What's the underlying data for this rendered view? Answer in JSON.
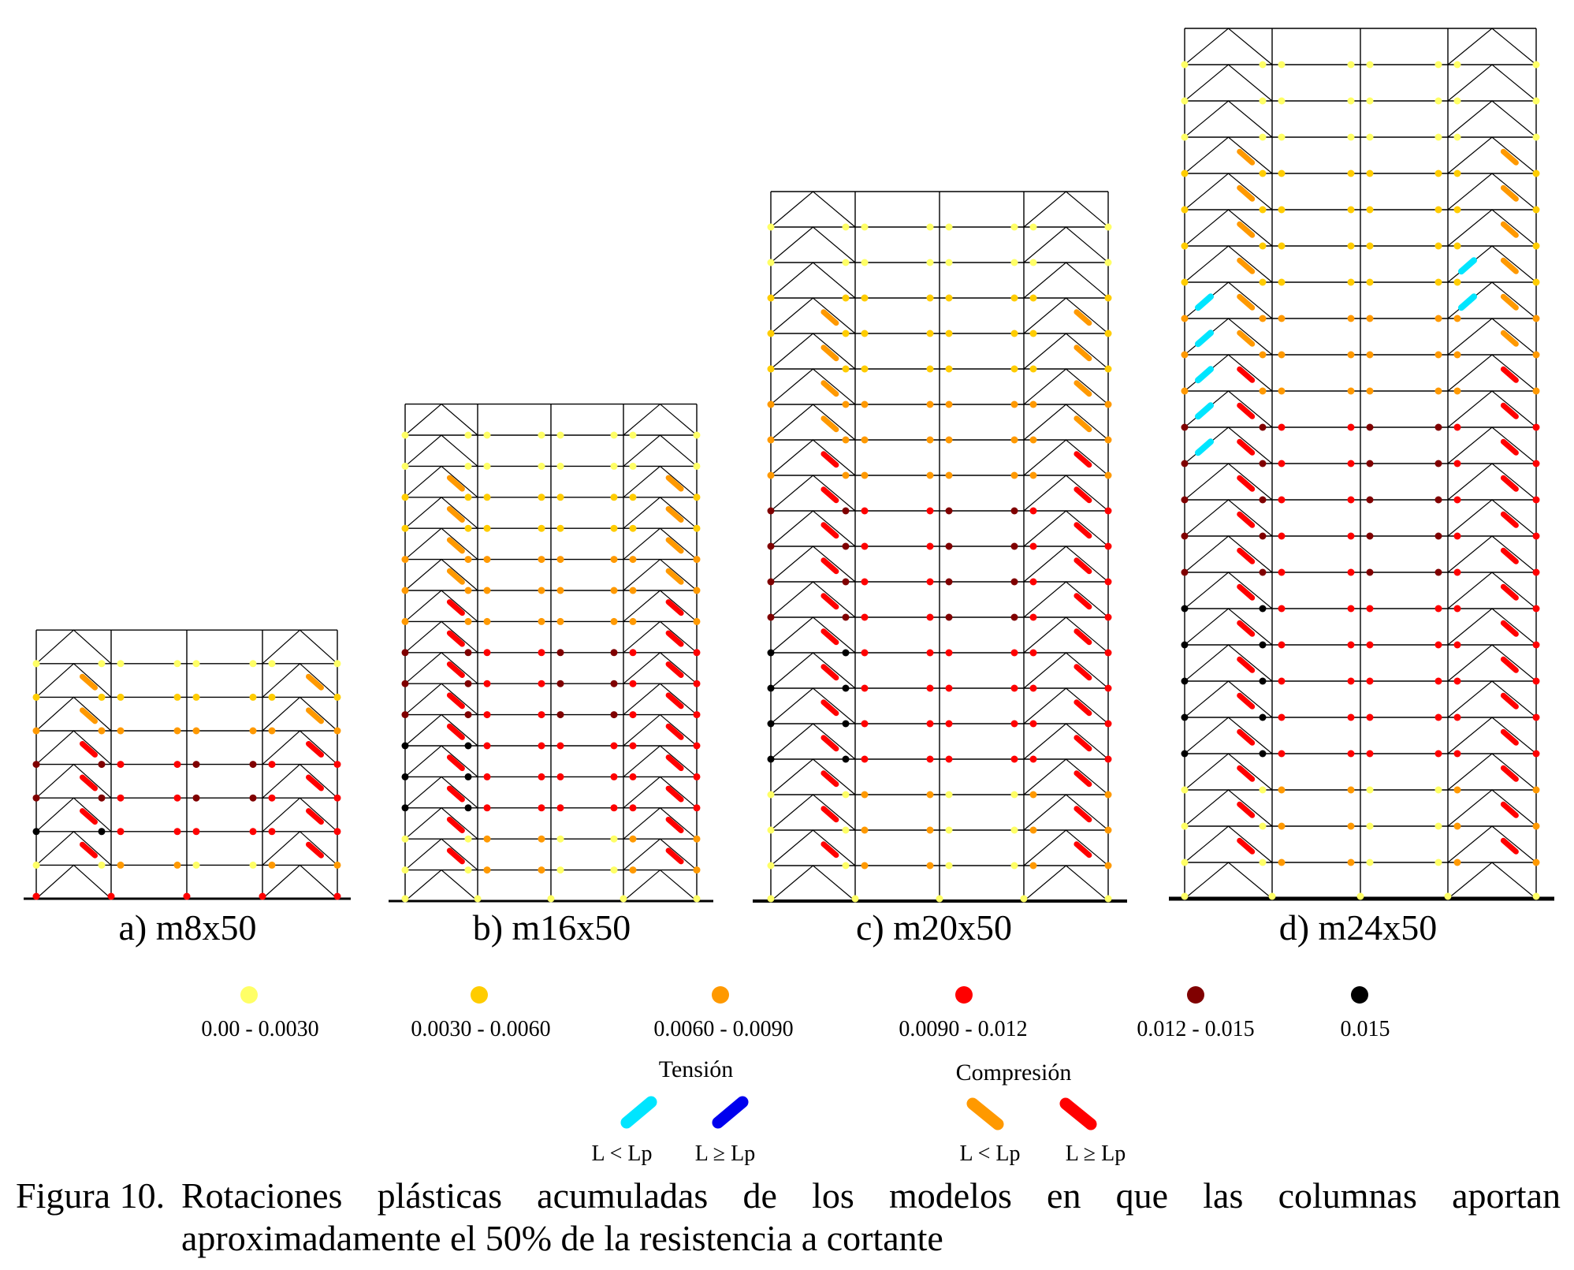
{
  "models": [
    {
      "label": "a) m8x50",
      "stories": 8
    },
    {
      "label": "b) m16x50",
      "stories": 16
    },
    {
      "label": "c) m20x50",
      "stories": 20
    },
    {
      "label": "d) m24x50",
      "stories": 24
    }
  ],
  "legend": {
    "ranges": [
      {
        "label": "0.00 - 0.0030",
        "color": "#ffff66"
      },
      {
        "label": "0.0030 - 0.0060",
        "color": "#ffcc00"
      },
      {
        "label": "0.0060 - 0.0090",
        "color": "#ff9900"
      },
      {
        "label": "0.0090 - 0.012",
        "color": "#ff0000"
      },
      {
        "label": "0.012 - 0.015",
        "color": "#800000"
      },
      {
        "label": "0.015",
        "color": "#000000"
      }
    ],
    "tension": {
      "title": "Tensión",
      "short": "L < Lp",
      "long": "L ≥ Lp",
      "short_color": "#00e5ff",
      "long_color": "#0000ee"
    },
    "compression": {
      "title": "Compresión",
      "short": "L < Lp",
      "long": "L ≥ Lp",
      "short_color": "#ff9900",
      "long_color": "#ff0000"
    }
  },
  "caption": {
    "number": "Figura 10.",
    "line1": "Rotaciones plásticas acumuladas de los modelos en que las columnas aportan",
    "line2": "aproximadamente el 50% de la resistencia a cortante"
  }
}
